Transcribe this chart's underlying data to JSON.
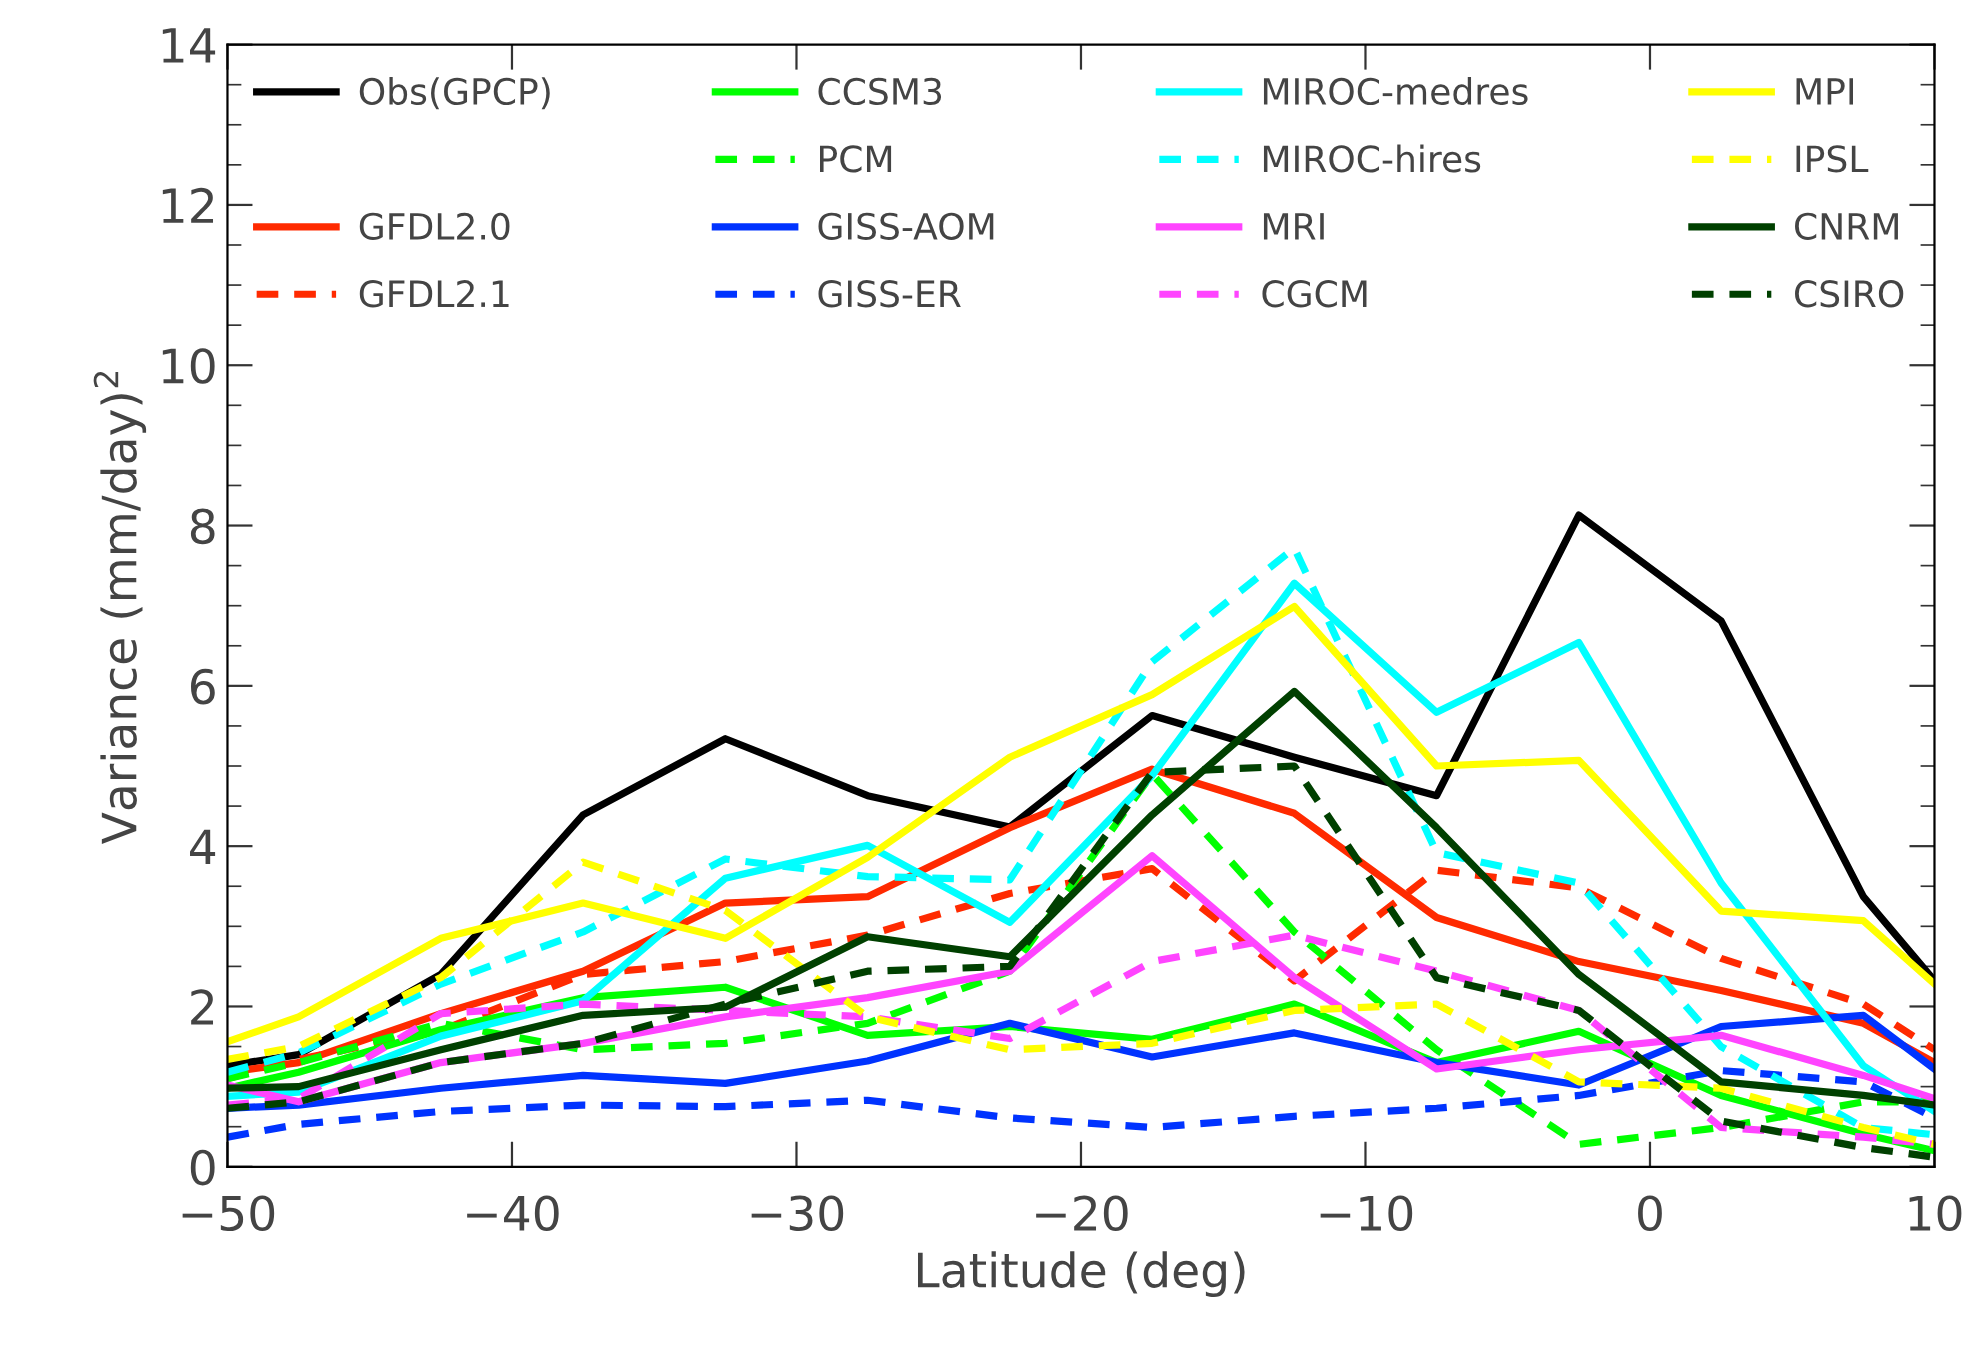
{
  "chart_data": {
    "type": "line",
    "xlabel": "Latitude (deg)",
    "ylabel": "Variance (mm/day)$^{2}$",
    "x": [
      -50,
      -47.5,
      -42.5,
      -37.5,
      -32.5,
      -27.5,
      -22.5,
      -17.5,
      -12.5,
      -7.5,
      -2.5,
      2.5,
      7.5,
      10
    ],
    "xlim": [
      -50,
      10
    ],
    "xticks": [
      {
        "value": -50,
        "label": "−50"
      },
      {
        "value": -40,
        "label": "−40"
      },
      {
        "value": -30,
        "label": "−30"
      },
      {
        "value": -20,
        "label": "−20"
      },
      {
        "value": -10,
        "label": "−10"
      },
      0,
      10
    ],
    "ylim": [
      0,
      14
    ],
    "yticks": [
      0,
      2,
      4,
      6,
      8,
      10,
      12,
      14
    ],
    "grid": false,
    "legend": "top",
    "line_style": "solid",
    "marker": "none",
    "series": [
      {
        "name": "Obs(GPCP)",
        "color": "#000000",
        "values": [
          1.26,
          1.4,
          2.4,
          4.39,
          5.34,
          4.63,
          4.24,
          5.63,
          5.11,
          4.63,
          8.13,
          6.81,
          3.37,
          2.32
        ]
      },
      {
        "name": "GFDL2.0",
        "color": "#ff2a00",
        "values": [
          1.18,
          1.3,
          1.91,
          2.44,
          3.29,
          3.37,
          4.23,
          4.96,
          4.41,
          3.11,
          2.56,
          2.2,
          1.79,
          1.3
        ]
      },
      {
        "name": "GFDL2.1",
        "color": "#ff2a00",
        "line_style": "dashed",
        "values": [
          1.1,
          1.34,
          1.7,
          2.4,
          2.56,
          2.89,
          3.41,
          3.72,
          2.32,
          3.7,
          3.48,
          2.6,
          2.03,
          1.46
        ]
      },
      {
        "name": "CCSM3",
        "color": "#00ff00",
        "values": [
          0.98,
          1.18,
          1.71,
          2.11,
          2.24,
          1.64,
          1.75,
          1.59,
          2.03,
          1.3,
          1.69,
          0.89,
          0.41,
          0.2
        ]
      },
      {
        "name": "PCM",
        "color": "#00ff00",
        "line_style": "dashed",
        "values": [
          1.1,
          1.3,
          1.79,
          1.46,
          1.54,
          1.79,
          2.44,
          4.9,
          2.93,
          1.46,
          0.28,
          0.49,
          0.81,
          0.81
        ]
      },
      {
        "name": "GISS-AOM",
        "color": "#0033ff",
        "values": [
          0.73,
          0.77,
          0.98,
          1.14,
          1.04,
          1.32,
          1.79,
          1.37,
          1.67,
          1.3,
          1.02,
          1.75,
          1.89,
          1.22
        ]
      },
      {
        "name": "GISS-ER",
        "color": "#0033ff",
        "line_style": "dashed",
        "values": [
          0.37,
          0.53,
          0.69,
          0.77,
          0.75,
          0.83,
          0.61,
          0.49,
          0.63,
          0.73,
          0.89,
          1.2,
          1.06,
          0.61
        ]
      },
      {
        "name": "MIROC-medres",
        "color": "#00ffff",
        "values": [
          0.88,
          0.93,
          1.63,
          2.07,
          3.6,
          4.01,
          3.05,
          4.88,
          7.28,
          5.67,
          6.54,
          3.54,
          1.26,
          0.69
        ]
      },
      {
        "name": "MIROC-hires",
        "color": "#00ffff",
        "line_style": "dashed",
        "values": [
          1.18,
          1.42,
          2.28,
          2.93,
          3.84,
          3.62,
          3.58,
          6.3,
          7.72,
          3.92,
          3.54,
          1.5,
          0.49,
          0.4
        ]
      },
      {
        "name": "MRI",
        "color": "#ff44ff",
        "values": [
          1.02,
          0.81,
          1.3,
          1.54,
          1.87,
          2.11,
          2.44,
          3.88,
          2.36,
          1.22,
          1.46,
          1.64,
          1.14,
          0.85
        ]
      },
      {
        "name": "CGCM",
        "color": "#ff44ff",
        "line_style": "dashed",
        "values": [
          0.77,
          0.85,
          1.91,
          2.03,
          1.95,
          1.87,
          1.6,
          2.56,
          2.89,
          2.44,
          1.95,
          0.49,
          0.37,
          0.28
        ]
      },
      {
        "name": "MPI",
        "color": "#ffff00",
        "values": [
          1.56,
          1.87,
          2.85,
          3.29,
          2.85,
          3.86,
          5.11,
          5.89,
          6.99,
          5.0,
          5.07,
          3.19,
          3.07,
          2.28
        ]
      },
      {
        "name": "IPSL",
        "color": "#ffff00",
        "line_style": "dashed",
        "values": [
          1.34,
          1.5,
          2.36,
          3.8,
          3.2,
          1.87,
          1.46,
          1.54,
          1.95,
          2.03,
          1.06,
          0.98,
          0.49,
          0.28
        ]
      },
      {
        "name": "CNRM",
        "color": "#004000",
        "values": [
          0.98,
          1.0,
          1.46,
          1.89,
          1.99,
          2.87,
          2.62,
          4.39,
          5.93,
          4.23,
          2.4,
          1.06,
          0.89,
          0.77
        ]
      },
      {
        "name": "CSIRO",
        "color": "#004000",
        "line_style": "dashed",
        "values": [
          0.73,
          0.81,
          1.3,
          1.54,
          2.03,
          2.44,
          2.5,
          4.92,
          5.0,
          2.36,
          1.95,
          0.57,
          0.24,
          0.12
        ]
      }
    ]
  }
}
